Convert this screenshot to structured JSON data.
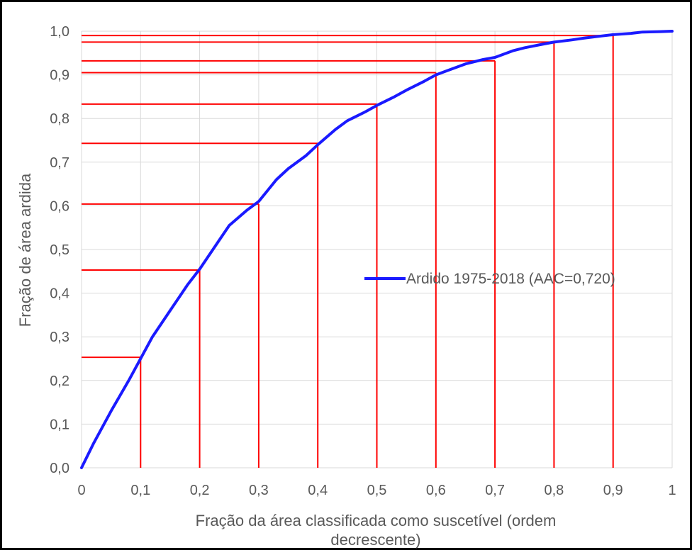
{
  "chart_data": {
    "type": "line",
    "xlabel_lines": [
      "Fração da área classificada como suscetível (ordem",
      "decrescente)"
    ],
    "ylabel": "Fração de área ardida",
    "xlim": [
      0,
      1
    ],
    "ylim": [
      0,
      1
    ],
    "x_tick_labels": [
      "0",
      "0,1",
      "0,2",
      "0,3",
      "0,4",
      "0,5",
      "0,6",
      "0,7",
      "0,8",
      "0,9",
      "1"
    ],
    "y_tick_labels": [
      "0,0",
      "0,1",
      "0,2",
      "0,3",
      "0,4",
      "0,5",
      "0,6",
      "0,7",
      "0,8",
      "0,9",
      "1,0"
    ],
    "grid": true,
    "legend_position": "center-right",
    "series": [
      {
        "name": "Ardido 1975-2018 (AAC=0,720)",
        "color": "#1a1aff",
        "x": [
          0,
          0.02,
          0.05,
          0.08,
          0.1,
          0.12,
          0.15,
          0.18,
          0.2,
          0.23,
          0.25,
          0.28,
          0.3,
          0.33,
          0.35,
          0.38,
          0.4,
          0.43,
          0.45,
          0.48,
          0.5,
          0.53,
          0.55,
          0.58,
          0.6,
          0.63,
          0.65,
          0.68,
          0.7,
          0.73,
          0.75,
          0.78,
          0.8,
          0.83,
          0.85,
          0.88,
          0.9,
          0.93,
          0.95,
          0.98,
          1.0
        ],
        "y": [
          0,
          0.055,
          0.13,
          0.2,
          0.25,
          0.3,
          0.36,
          0.42,
          0.455,
          0.515,
          0.555,
          0.59,
          0.61,
          0.66,
          0.685,
          0.715,
          0.74,
          0.775,
          0.795,
          0.815,
          0.83,
          0.85,
          0.865,
          0.885,
          0.9,
          0.915,
          0.925,
          0.935,
          0.94,
          0.955,
          0.962,
          0.97,
          0.975,
          0.98,
          0.984,
          0.989,
          0.992,
          0.995,
          0.998,
          0.999,
          1.0
        ]
      }
    ],
    "reference_lines": [
      {
        "x": 0.1,
        "y": 0.253
      },
      {
        "x": 0.2,
        "y": 0.453
      },
      {
        "x": 0.3,
        "y": 0.604
      },
      {
        "x": 0.4,
        "y": 0.743
      },
      {
        "x": 0.5,
        "y": 0.833
      },
      {
        "x": 0.6,
        "y": 0.905
      },
      {
        "x": 0.7,
        "y": 0.932
      },
      {
        "x": 0.8,
        "y": 0.975
      },
      {
        "x": 0.9,
        "y": 0.99
      }
    ],
    "reference_color": "#ff0000",
    "grid_color": "#d9d9d9"
  }
}
